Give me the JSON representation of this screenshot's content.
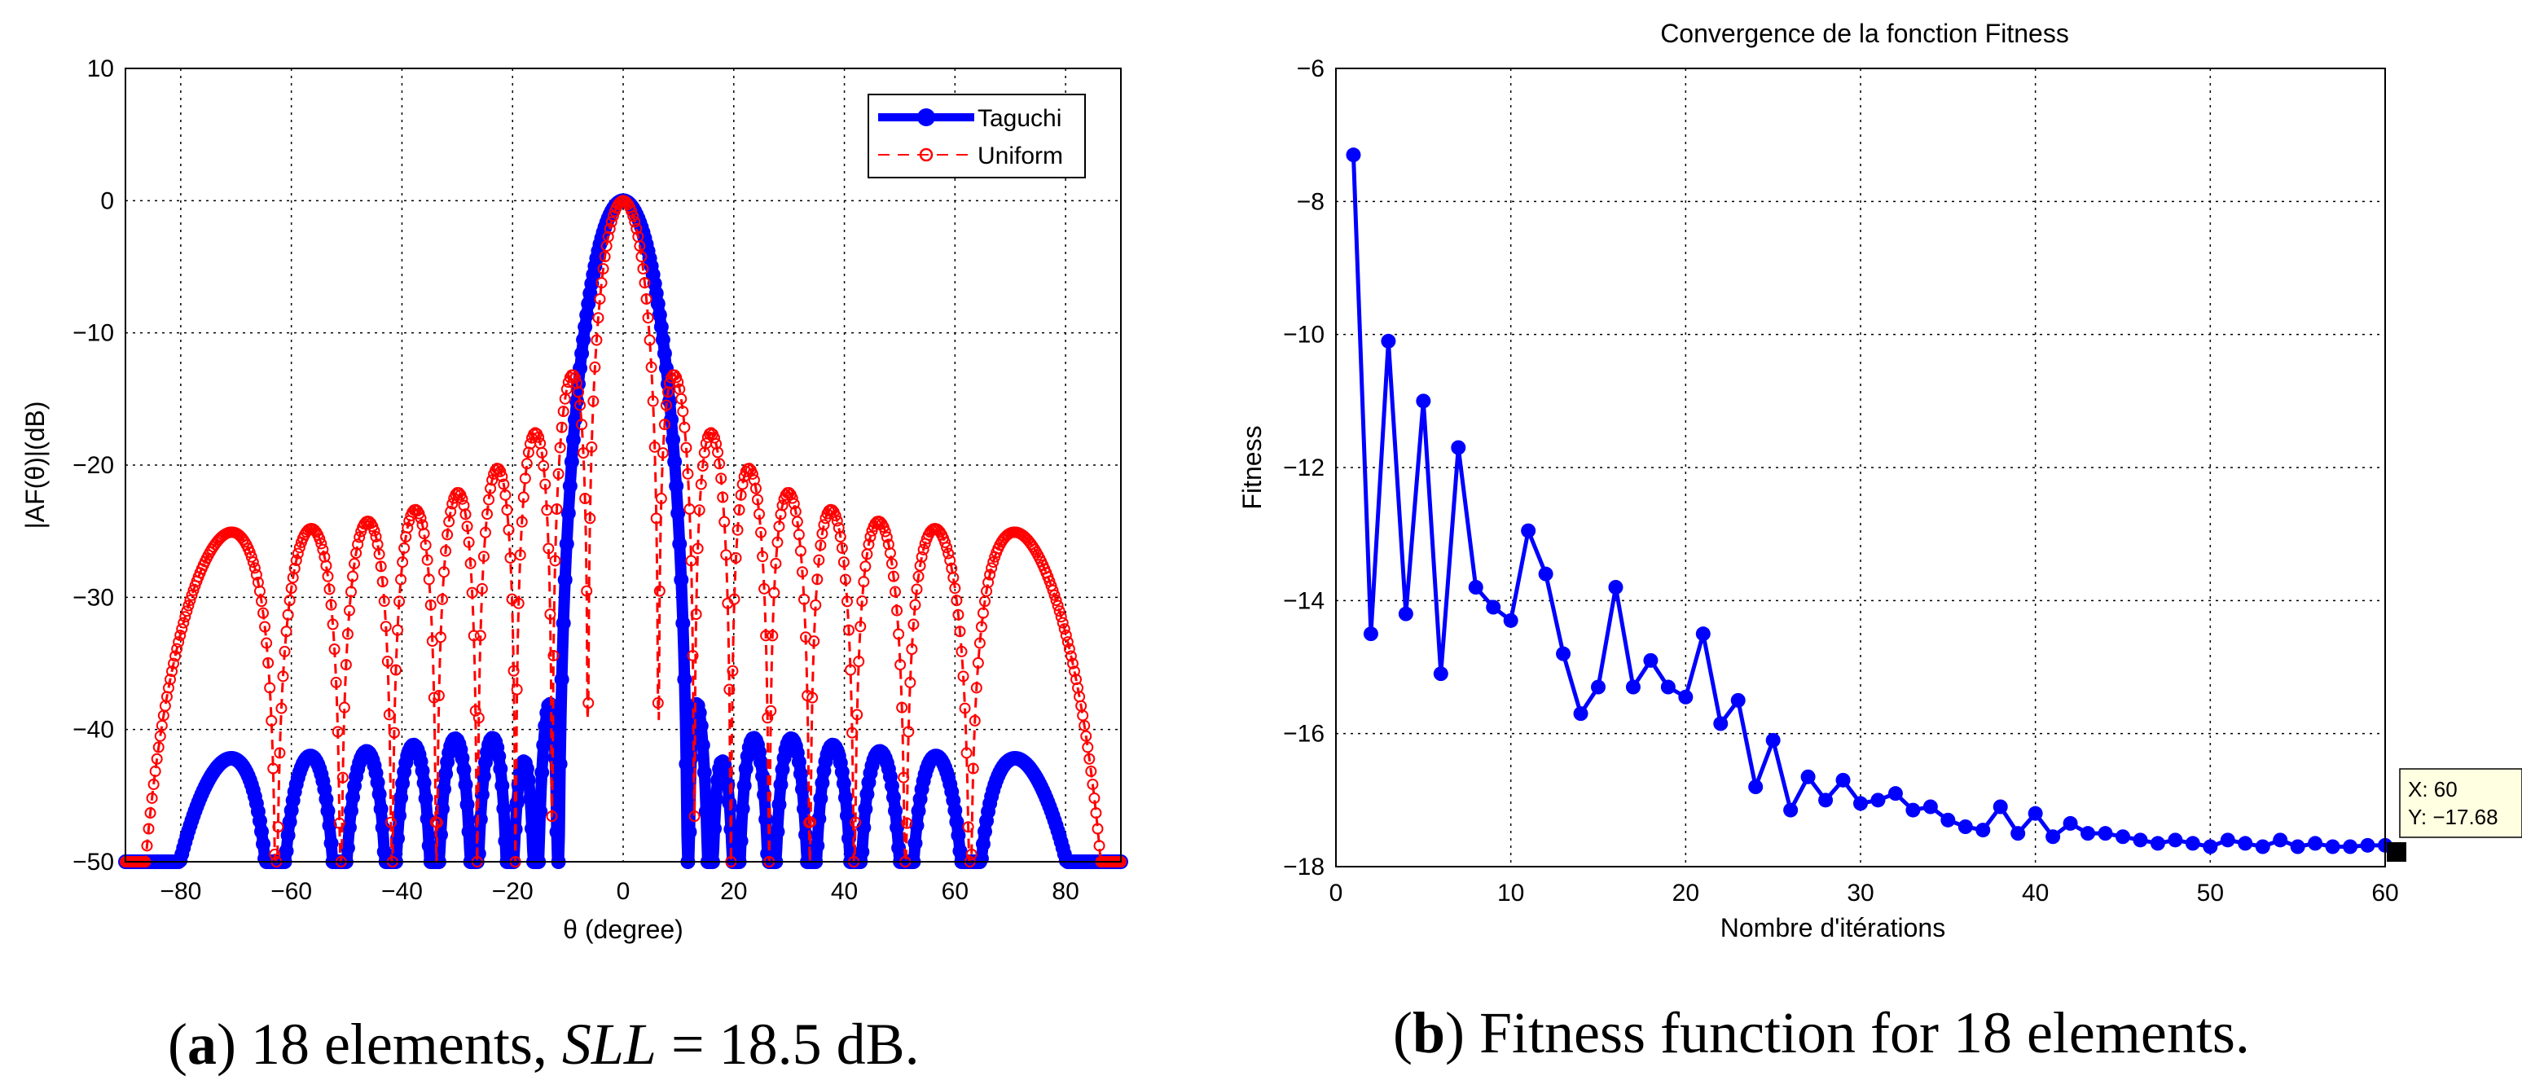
{
  "captions": {
    "a": {
      "open": "(",
      "letter": "a",
      "rest": ") 18 elements, ",
      "math": "SLL",
      "tail": " = 18.5 dB."
    },
    "b": {
      "open": "(",
      "letter": "b",
      "rest": ") Fitness function for 18 elements."
    }
  },
  "datatip": {
    "x_line": "X: 60",
    "y_line": "Y: −17.68"
  },
  "chart_data": [
    {
      "type": "line",
      "title": "",
      "xlabel": "θ (degree)",
      "ylabel": "|AF(θ)|(dB)",
      "xlim": [
        -90,
        90
      ],
      "ylim": [
        -50,
        10
      ],
      "xticks": [
        -80,
        -60,
        -40,
        -20,
        0,
        20,
        40,
        60,
        80
      ],
      "yticks": [
        10,
        0,
        -10,
        -20,
        -30,
        -40,
        -50
      ],
      "grid": true,
      "legend_position": "top-right",
      "series": [
        {
          "name": "Taguchi",
          "color": "#0000ff",
          "style": "solid-thick-circle-markers",
          "elements": 18,
          "sll_db": -18.5
        },
        {
          "name": "Uniform",
          "color": "#ff0000",
          "style": "dashed-thin-circle-markers",
          "elements": 18,
          "sll_db": -13.3
        }
      ]
    },
    {
      "type": "line",
      "title": "Convergence de la fonction Fitness",
      "xlabel": "Nombre d'itérations",
      "ylabel": "Fitness",
      "xlim": [
        0,
        60
      ],
      "ylim": [
        -18,
        -6
      ],
      "xticks": [
        0,
        10,
        20,
        30,
        40,
        50,
        60
      ],
      "yticks": [
        -6,
        -8,
        -10,
        -12,
        -14,
        -16,
        -18
      ],
      "grid": true,
      "series": [
        {
          "name": "",
          "color": "#0000ff",
          "x": [
            1,
            2,
            3,
            4,
            5,
            6,
            7,
            8,
            9,
            10,
            11,
            12,
            13,
            14,
            15,
            16,
            17,
            18,
            19,
            20,
            21,
            22,
            23,
            24,
            25,
            26,
            27,
            28,
            29,
            30,
            31,
            32,
            33,
            34,
            35,
            36,
            37,
            38,
            39,
            40,
            41,
            42,
            43,
            44,
            45,
            46,
            47,
            48,
            49,
            50,
            51,
            52,
            53,
            54,
            55,
            56,
            57,
            58,
            59,
            60
          ],
          "y": [
            -7.3,
            -14.5,
            -10.1,
            -14.2,
            -11.0,
            -15.1,
            -11.7,
            -13.8,
            -14.1,
            -14.3,
            -12.95,
            -13.6,
            -14.8,
            -15.7,
            -15.3,
            -13.8,
            -15.3,
            -14.9,
            -15.3,
            -15.45,
            -14.5,
            -15.85,
            -15.5,
            -16.8,
            -16.1,
            -17.15,
            -16.65,
            -17.0,
            -16.7,
            -17.05,
            -17.0,
            -16.9,
            -17.15,
            -17.1,
            -17.3,
            -17.4,
            -17.45,
            -17.1,
            -17.5,
            -17.2,
            -17.55,
            -17.35,
            -17.5,
            -17.5,
            -17.55,
            -17.6,
            -17.65,
            -17.6,
            -17.65,
            -17.7,
            -17.6,
            -17.65,
            -17.7,
            -17.6,
            -17.7,
            -17.65,
            -17.7,
            -17.7,
            -17.68,
            -17.68
          ]
        }
      ]
    }
  ]
}
